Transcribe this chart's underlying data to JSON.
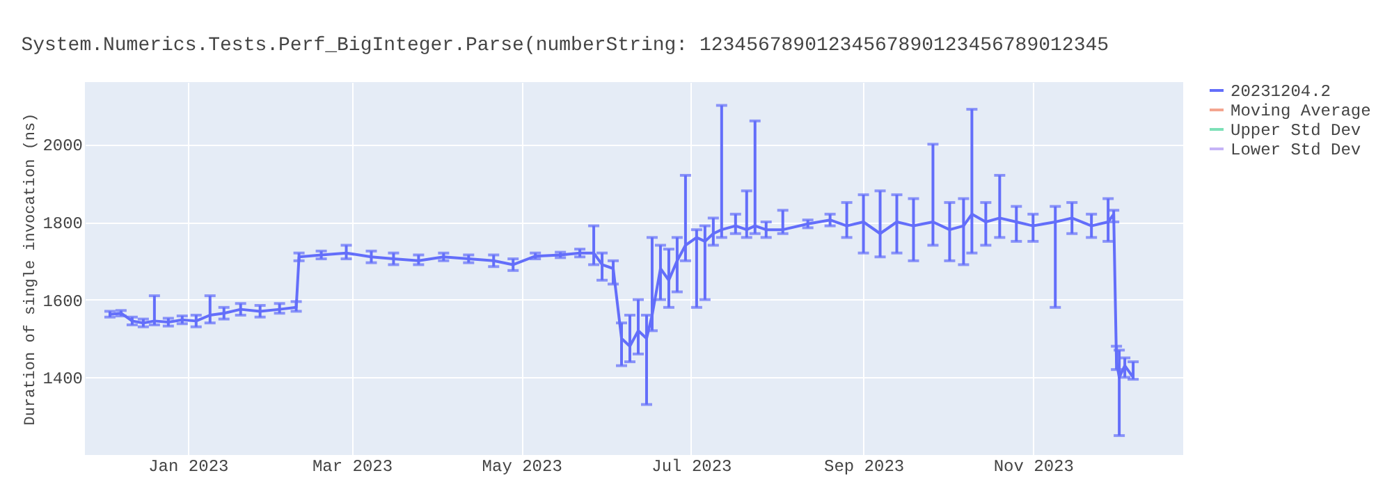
{
  "chart_data": {
    "type": "line",
    "title": "System.Numerics.Tests.Perf_BigInteger.Parse(numberString: 12345678901234567890123456789012345",
    "ylabel": "Duration of single invocation (ns)",
    "x": [
      "2022-12-04",
      "2022-12-08",
      "2022-12-12",
      "2022-12-16",
      "2022-12-20",
      "2022-12-25",
      "2022-12-30",
      "2023-01-04",
      "2023-01-09",
      "2023-01-14",
      "2023-01-20",
      "2023-01-27",
      "2023-02-03",
      "2023-02-09",
      "2023-02-10",
      "2023-02-18",
      "2023-02-27",
      "2023-03-08",
      "2023-03-16",
      "2023-03-25",
      "2023-04-03",
      "2023-04-12",
      "2023-04-21",
      "2023-04-28",
      "2023-05-06",
      "2023-05-15",
      "2023-05-22",
      "2023-05-27",
      "2023-05-30",
      "2023-06-03",
      "2023-06-06",
      "2023-06-09",
      "2023-06-12",
      "2023-06-15",
      "2023-06-17",
      "2023-06-20",
      "2023-06-23",
      "2023-06-26",
      "2023-06-29",
      "2023-07-03",
      "2023-07-06",
      "2023-07-09",
      "2023-07-12",
      "2023-07-17",
      "2023-07-21",
      "2023-07-24",
      "2023-07-28",
      "2023-08-03",
      "2023-08-12",
      "2023-08-20",
      "2023-08-26",
      "2023-09-01",
      "2023-09-07",
      "2023-09-13",
      "2023-09-19",
      "2023-09-26",
      "2023-10-02",
      "2023-10-07",
      "2023-10-10",
      "2023-10-15",
      "2023-10-20",
      "2023-10-26",
      "2023-11-01",
      "2023-11-09",
      "2023-11-15",
      "2023-11-22",
      "2023-11-28",
      "2023-11-30",
      "2023-12-01",
      "2023-12-02",
      "2023-12-04",
      "2023-12-07"
    ],
    "series": [
      {
        "name": "20231204.2",
        "color": "#636efa",
        "values": [
          1562,
          1565,
          1545,
          1540,
          1545,
          1542,
          1548,
          1545,
          1560,
          1565,
          1575,
          1570,
          1575,
          1580,
          1710,
          1715,
          1720,
          1710,
          1705,
          1700,
          1710,
          1705,
          1700,
          1690,
          1712,
          1715,
          1720,
          1720,
          1690,
          1680,
          1500,
          1480,
          1520,
          1500,
          1560,
          1680,
          1650,
          1700,
          1740,
          1760,
          1750,
          1770,
          1780,
          1790,
          1780,
          1790,
          1780,
          1780,
          1795,
          1805,
          1790,
          1800,
          1770,
          1800,
          1790,
          1800,
          1780,
          1790,
          1820,
          1800,
          1810,
          1800,
          1790,
          1800,
          1810,
          1790,
          1800,
          1820,
          1440,
          1400,
          1430,
          1400
        ],
        "errors": [
          [
            1555,
            1570
          ],
          [
            1558,
            1572
          ],
          [
            1535,
            1555
          ],
          [
            1530,
            1550
          ],
          [
            1535,
            1610
          ],
          [
            1532,
            1552
          ],
          [
            1538,
            1558
          ],
          [
            1530,
            1560
          ],
          [
            1540,
            1610
          ],
          [
            1550,
            1580
          ],
          [
            1560,
            1590
          ],
          [
            1555,
            1585
          ],
          [
            1565,
            1590
          ],
          [
            1570,
            1595
          ],
          [
            1700,
            1720
          ],
          [
            1705,
            1725
          ],
          [
            1705,
            1740
          ],
          [
            1695,
            1725
          ],
          [
            1690,
            1720
          ],
          [
            1690,
            1715
          ],
          [
            1700,
            1720
          ],
          [
            1695,
            1715
          ],
          [
            1685,
            1715
          ],
          [
            1675,
            1705
          ],
          [
            1705,
            1720
          ],
          [
            1708,
            1722
          ],
          [
            1710,
            1730
          ],
          [
            1690,
            1790
          ],
          [
            1650,
            1720
          ],
          [
            1640,
            1700
          ],
          [
            1430,
            1540
          ],
          [
            1440,
            1560
          ],
          [
            1460,
            1600
          ],
          [
            1330,
            1560
          ],
          [
            1520,
            1760
          ],
          [
            1600,
            1740
          ],
          [
            1580,
            1730
          ],
          [
            1620,
            1760
          ],
          [
            1700,
            1920
          ],
          [
            1580,
            1780
          ],
          [
            1600,
            1790
          ],
          [
            1740,
            1810
          ],
          [
            1760,
            2100
          ],
          [
            1770,
            1820
          ],
          [
            1760,
            1880
          ],
          [
            1770,
            2060
          ],
          [
            1760,
            1800
          ],
          [
            1770,
            1830
          ],
          [
            1785,
            1805
          ],
          [
            1790,
            1820
          ],
          [
            1760,
            1850
          ],
          [
            1720,
            1870
          ],
          [
            1710,
            1880
          ],
          [
            1720,
            1870
          ],
          [
            1700,
            1860
          ],
          [
            1740,
            2000
          ],
          [
            1700,
            1850
          ],
          [
            1690,
            1860
          ],
          [
            1720,
            2090
          ],
          [
            1740,
            1850
          ],
          [
            1760,
            1920
          ],
          [
            1750,
            1840
          ],
          [
            1750,
            1820
          ],
          [
            1580,
            1840
          ],
          [
            1770,
            1850
          ],
          [
            1760,
            1820
          ],
          [
            1750,
            1860
          ],
          [
            1800,
            1830
          ],
          [
            1420,
            1480
          ],
          [
            1250,
            1470
          ],
          [
            1400,
            1450
          ],
          [
            1395,
            1440
          ]
        ]
      },
      {
        "name": "Moving Average",
        "color": "#f4a58f",
        "values": [
          null,
          null,
          null,
          null,
          null,
          null,
          null,
          null,
          null,
          null,
          null,
          null,
          null,
          null,
          null,
          null,
          null,
          null,
          null,
          null,
          null,
          null,
          null,
          null,
          null,
          null,
          null,
          null,
          null,
          null,
          null,
          null,
          null,
          null,
          null,
          null,
          null,
          null,
          null,
          null,
          null,
          null,
          null,
          null,
          null,
          null,
          null,
          null,
          null,
          null,
          null,
          null,
          null,
          null,
          null,
          null,
          null,
          null,
          null,
          null,
          null,
          null,
          null,
          null,
          null,
          null,
          null,
          null,
          null,
          null,
          null,
          null
        ]
      },
      {
        "name": "Upper Std Dev",
        "color": "#7de0b8",
        "values": [
          null,
          null,
          null,
          null,
          null,
          null,
          null,
          null,
          null,
          null,
          null,
          null,
          null,
          null,
          null,
          null,
          null,
          null,
          null,
          null,
          null,
          null,
          null,
          null,
          null,
          null,
          null,
          null,
          null,
          null,
          null,
          null,
          null,
          null,
          null,
          null,
          null,
          null,
          null,
          null,
          null,
          null,
          null,
          null,
          null,
          null,
          null,
          null,
          null,
          null,
          null,
          null,
          null,
          null,
          null,
          null,
          null,
          null,
          null,
          null,
          null,
          null,
          null,
          null,
          null,
          null,
          null,
          null,
          null,
          null,
          null,
          null
        ]
      },
      {
        "name": "Lower Std Dev",
        "color": "#c5b3f6",
        "values": [
          null,
          null,
          null,
          null,
          null,
          null,
          null,
          null,
          null,
          null,
          null,
          null,
          null,
          null,
          null,
          null,
          null,
          null,
          null,
          null,
          null,
          null,
          null,
          null,
          null,
          null,
          null,
          null,
          null,
          null,
          null,
          null,
          null,
          null,
          null,
          null,
          null,
          null,
          null,
          null,
          null,
          null,
          null,
          null,
          null,
          null,
          null,
          null,
          null,
          null,
          null,
          null,
          null,
          null,
          null,
          null,
          null,
          null,
          null,
          null,
          null,
          null,
          null,
          null,
          null,
          null,
          null,
          null,
          null,
          null,
          null,
          null
        ]
      }
    ],
    "xlim": [
      "2022-11-25",
      "2023-12-25"
    ],
    "xticks": [
      {
        "value": "2023-01-01",
        "label": "Jan 2023"
      },
      {
        "value": "2023-03-01",
        "label": "Mar 2023"
      },
      {
        "value": "2023-05-01",
        "label": "May 2023"
      },
      {
        "value": "2023-07-01",
        "label": "Jul 2023"
      },
      {
        "value": "2023-09-01",
        "label": "Sep 2023"
      },
      {
        "value": "2023-11-01",
        "label": "Nov 2023"
      }
    ],
    "ylim": [
      1200,
      2160
    ],
    "yticks": [
      1400,
      1600,
      1800,
      2000
    ],
    "grid": true,
    "legend": "top right",
    "marker": "none",
    "line_style": "solid"
  }
}
